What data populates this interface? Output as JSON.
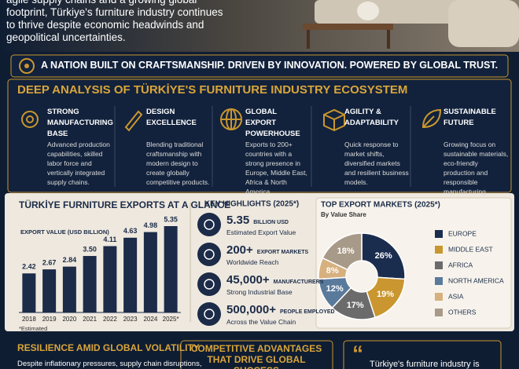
{
  "header": {
    "intro": "agile supply chains and a growing global footprint, Türkiye's furniture industry continues to thrive despite economic headwinds and geopolitical uncertainties."
  },
  "banner": {
    "text": "A NATION BUILT ON CRAFTSMANSHIP. DRIVEN BY INNOVATION. POWERED BY GLOBAL TRUST."
  },
  "analysis": {
    "title": "DEEP ANALYSIS OF TÜRKİYE'S FURNITURE INDUSTRY ECOSYSTEM",
    "items": [
      {
        "title": "STRONG MANUFACTURING BASE",
        "text": "Advanced production capabilities, skilled labor force and vertically integrated supply chains."
      },
      {
        "title": "DESIGN EXCELLENCE",
        "text": "Blending traditional craftsmanship with modern design to create globally competitive products."
      },
      {
        "title": "GLOBAL EXPORT POWERHOUSE",
        "text": "Exports to 200+ countries with a strong presence in Europe, Middle East, Africa & North America."
      },
      {
        "title": "AGILITY & ADAPTABILITY",
        "text": "Quick response to market shifts, diversified markets and resilient business models."
      },
      {
        "title": "SUSTAINABLE FUTURE",
        "text": "Growing focus on sustainable materials, eco-friendly production and responsible manufacturing."
      }
    ]
  },
  "chart_data": [
    {
      "type": "bar",
      "title": "TÜRKİYE FURNITURE EXPORTS AT A GLANCE",
      "subtitle": "EXPORT VALUE (USD BILLION)",
      "note": "*Estimated",
      "categories": [
        "2018",
        "2019",
        "2020",
        "2021",
        "2022",
        "2023",
        "2024",
        "2025*"
      ],
      "values": [
        2.42,
        2.67,
        2.84,
        3.5,
        4.11,
        4.63,
        4.98,
        5.35
      ],
      "value_labels": [
        "2.42",
        "2.67",
        "2.84",
        "3.50",
        "4.11",
        "4.63",
        "4.98",
        "5.35"
      ],
      "color": "#1b2b48"
    },
    {
      "type": "pie",
      "title": "TOP EXPORT MARKETS (2025*)",
      "subtitle": "By Value Share",
      "categories": [
        "EUROPE",
        "MIDDLE EAST",
        "AFRICA",
        "NORTH AMERICA",
        "ASIA",
        "OTHERS"
      ],
      "values": [
        26,
        19,
        17,
        12,
        8,
        18
      ],
      "value_labels": [
        "26%",
        "19%",
        "17%",
        "12%",
        "8%",
        "18%"
      ],
      "colors": [
        "#1b2d4f",
        "#c9962f",
        "#6b6b6b",
        "#5a7a9c",
        "#d6b07e",
        "#a89a88"
      ]
    }
  ],
  "highlights": {
    "title": "KEY HIGHLIGHTS (2025*)",
    "items": [
      {
        "value": "5.35",
        "unit": "BILLION USD",
        "label": "Estimated Export Value"
      },
      {
        "value": "200+",
        "unit": "EXPORT MARKETS",
        "label": "Worldwide Reach"
      },
      {
        "value": "45,000+",
        "unit": "MANUFACTURERS",
        "label": "Strong Industrial Base"
      },
      {
        "value": "500,000+",
        "unit": "PEOPLE EMPLOYED",
        "label": "Across the Value Chain"
      }
    ]
  },
  "footer": {
    "resilience": {
      "title": "RESILIENCE AMID GLOBAL VOLATILITY",
      "text": "Despite inflationary pressures, supply chain disruptions,"
    },
    "advantages": {
      "title": "COMPETITIVE ADVANTAGES THAT DRIVE GLOBAL SUCCESS"
    },
    "quote": {
      "text": "Türkiye's furniture industry is"
    }
  }
}
